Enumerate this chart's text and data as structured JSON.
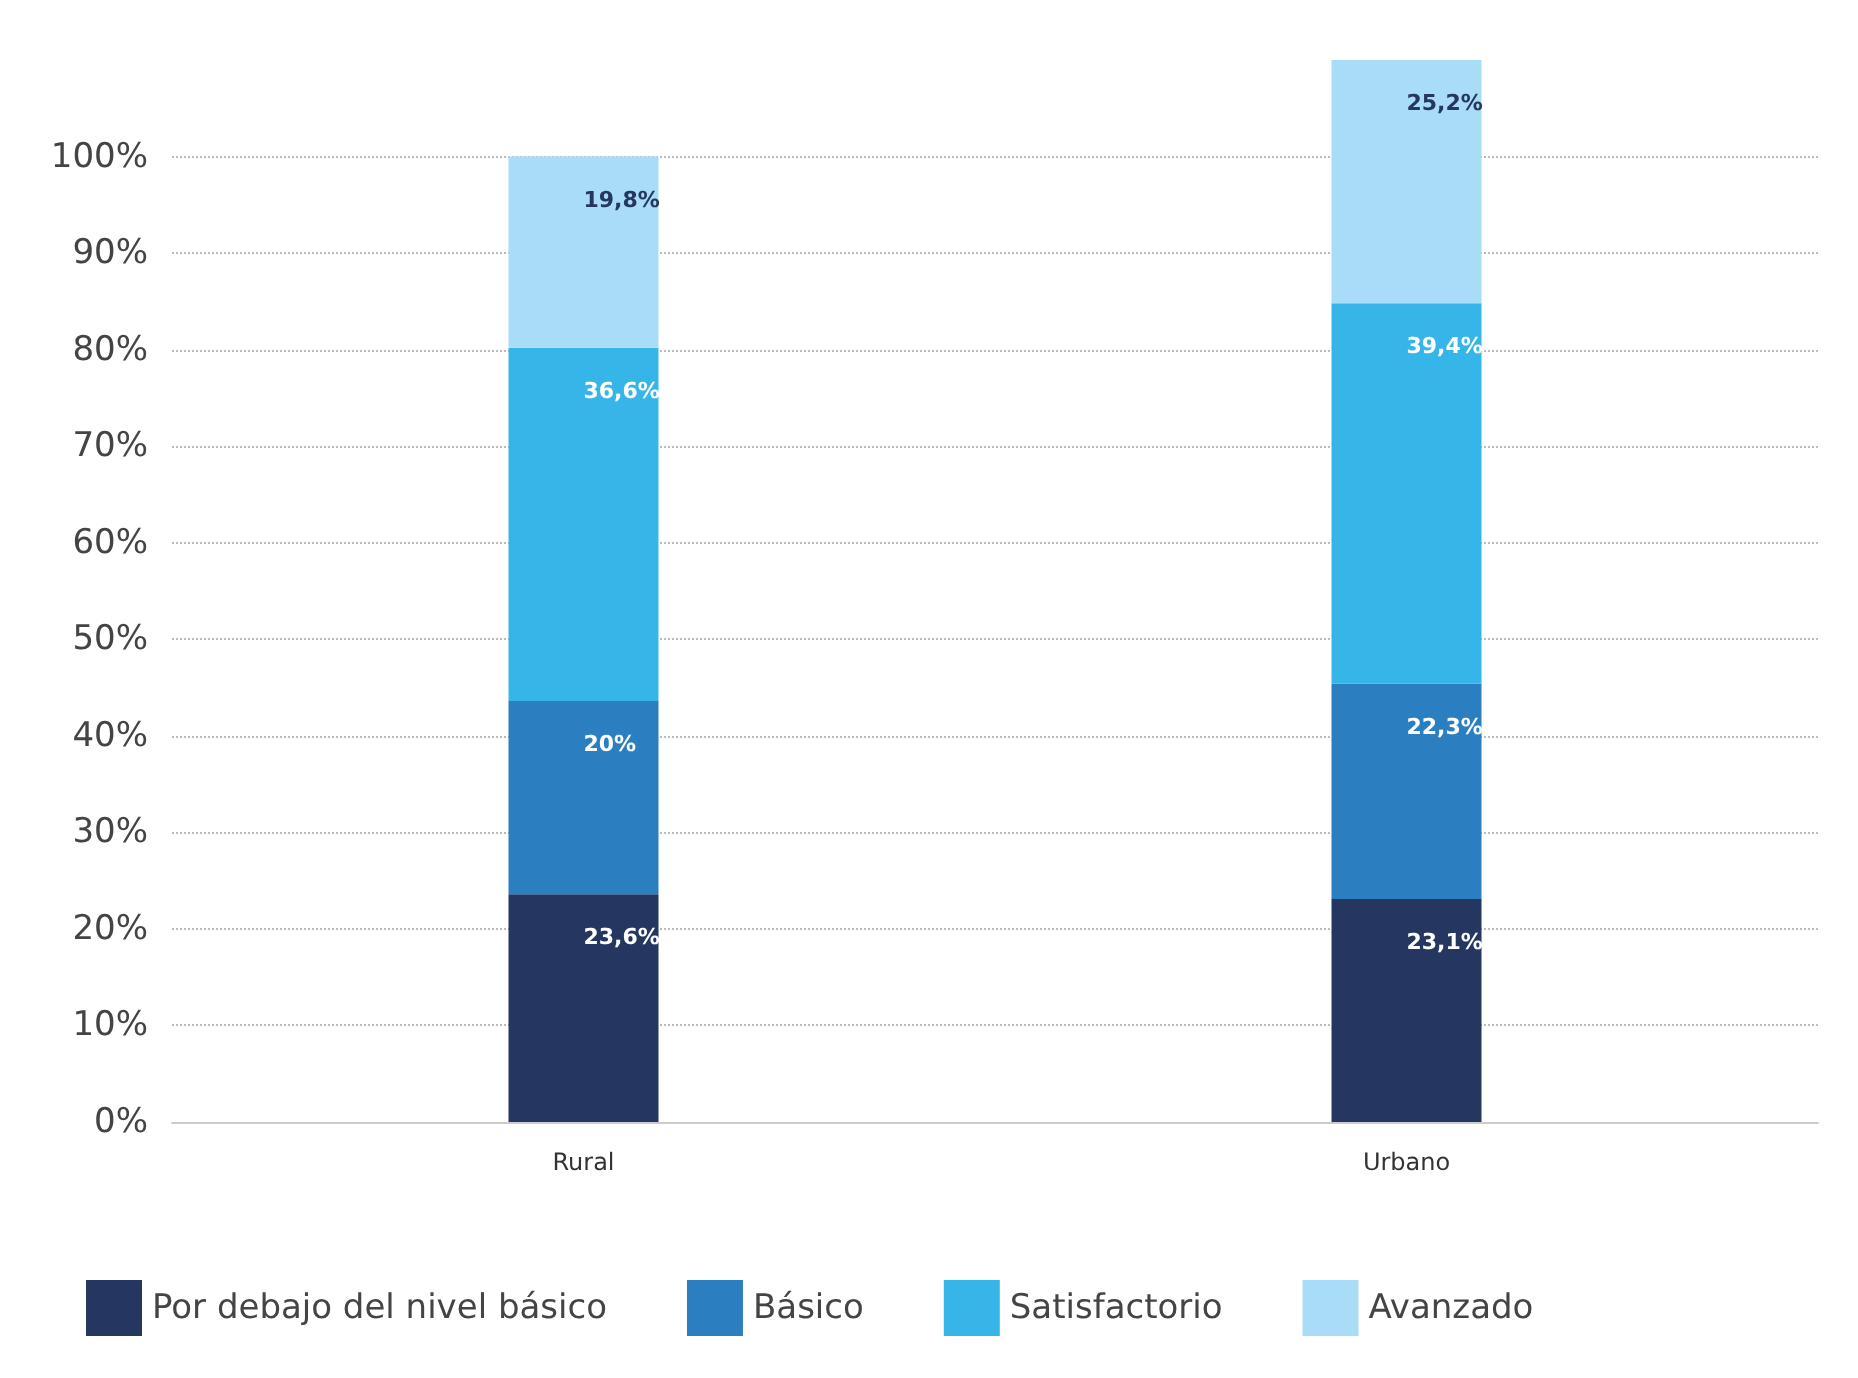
{
  "chart_data": {
    "type": "bar",
    "stacked": true,
    "categories": [
      "Rural",
      "Urbano"
    ],
    "series": [
      {
        "name": "Por debajo del nivel básico",
        "color": "#253660",
        "values": [
          23.6,
          23.1
        ],
        "value_labels": [
          "23,6%",
          "23,1%"
        ]
      },
      {
        "name": "Básico",
        "color": "#2b7fc0",
        "values": [
          20,
          22.3
        ],
        "value_labels": [
          "20%",
          "22,3%"
        ]
      },
      {
        "name": "Satisfactorio",
        "color": "#36b5e9",
        "values": [
          36.6,
          39.4
        ],
        "value_labels": [
          "36,6%",
          "39,4%"
        ]
      },
      {
        "name": "Avanzado",
        "color": "#a9dcf6",
        "values": [
          19.8,
          25.2
        ],
        "value_labels": [
          "19,8%",
          "25,2%"
        ]
      }
    ],
    "ylim": [
      0,
      110
    ],
    "yticks": [
      {
        "value": 0,
        "label": "0%"
      },
      {
        "value": 10,
        "label": "10%"
      },
      {
        "value": 20,
        "label": "20%"
      },
      {
        "value": 30,
        "label": "30%"
      },
      {
        "value": 40,
        "label": "40%"
      },
      {
        "value": 50,
        "label": "50%"
      },
      {
        "value": 60,
        "label": "60%"
      },
      {
        "value": 70,
        "label": "70%"
      },
      {
        "value": 80,
        "label": "80%"
      },
      {
        "value": 90,
        "label": "90%"
      },
      {
        "value": 100,
        "label": "100%"
      }
    ],
    "grid": "y",
    "legend": "bottom"
  }
}
